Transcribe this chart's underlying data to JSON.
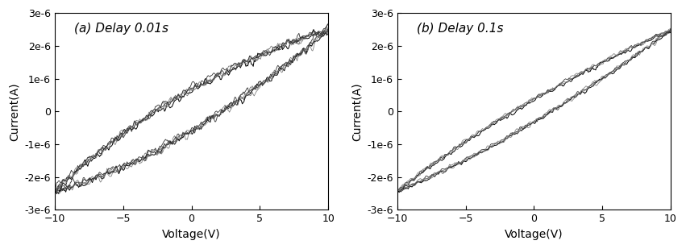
{
  "title_a": "(a) Delay 0.01s",
  "title_b": "(b) Delay 0.1s",
  "xlabel": "Voltage(V)",
  "ylabel": "Current(A)",
  "xlim": [
    -10,
    10
  ],
  "ylim": [
    -3e-06,
    3e-06
  ],
  "xticks": [
    -10,
    -5,
    0,
    5,
    10
  ],
  "yticks": [
    -3e-06,
    -2e-06,
    -1e-06,
    0,
    1e-06,
    2e-06,
    3e-06
  ],
  "ytick_labels": [
    "-3e-6",
    "-2e-6",
    "-1e-6",
    "0",
    "1e-6",
    "2e-6",
    "3e-6"
  ],
  "bg_color": "#ffffff",
  "num_sweeps_a": 5,
  "num_sweeps_b": 4,
  "noise_scale_a": 1e-07,
  "noise_scale_b": 5e-08,
  "hysteresis_a": 5.5e-07,
  "hysteresis_b": 3e-07,
  "conductance": 2.45e-07,
  "title_fontsize": 11,
  "axis_fontsize": 10,
  "tick_fontsize": 9
}
